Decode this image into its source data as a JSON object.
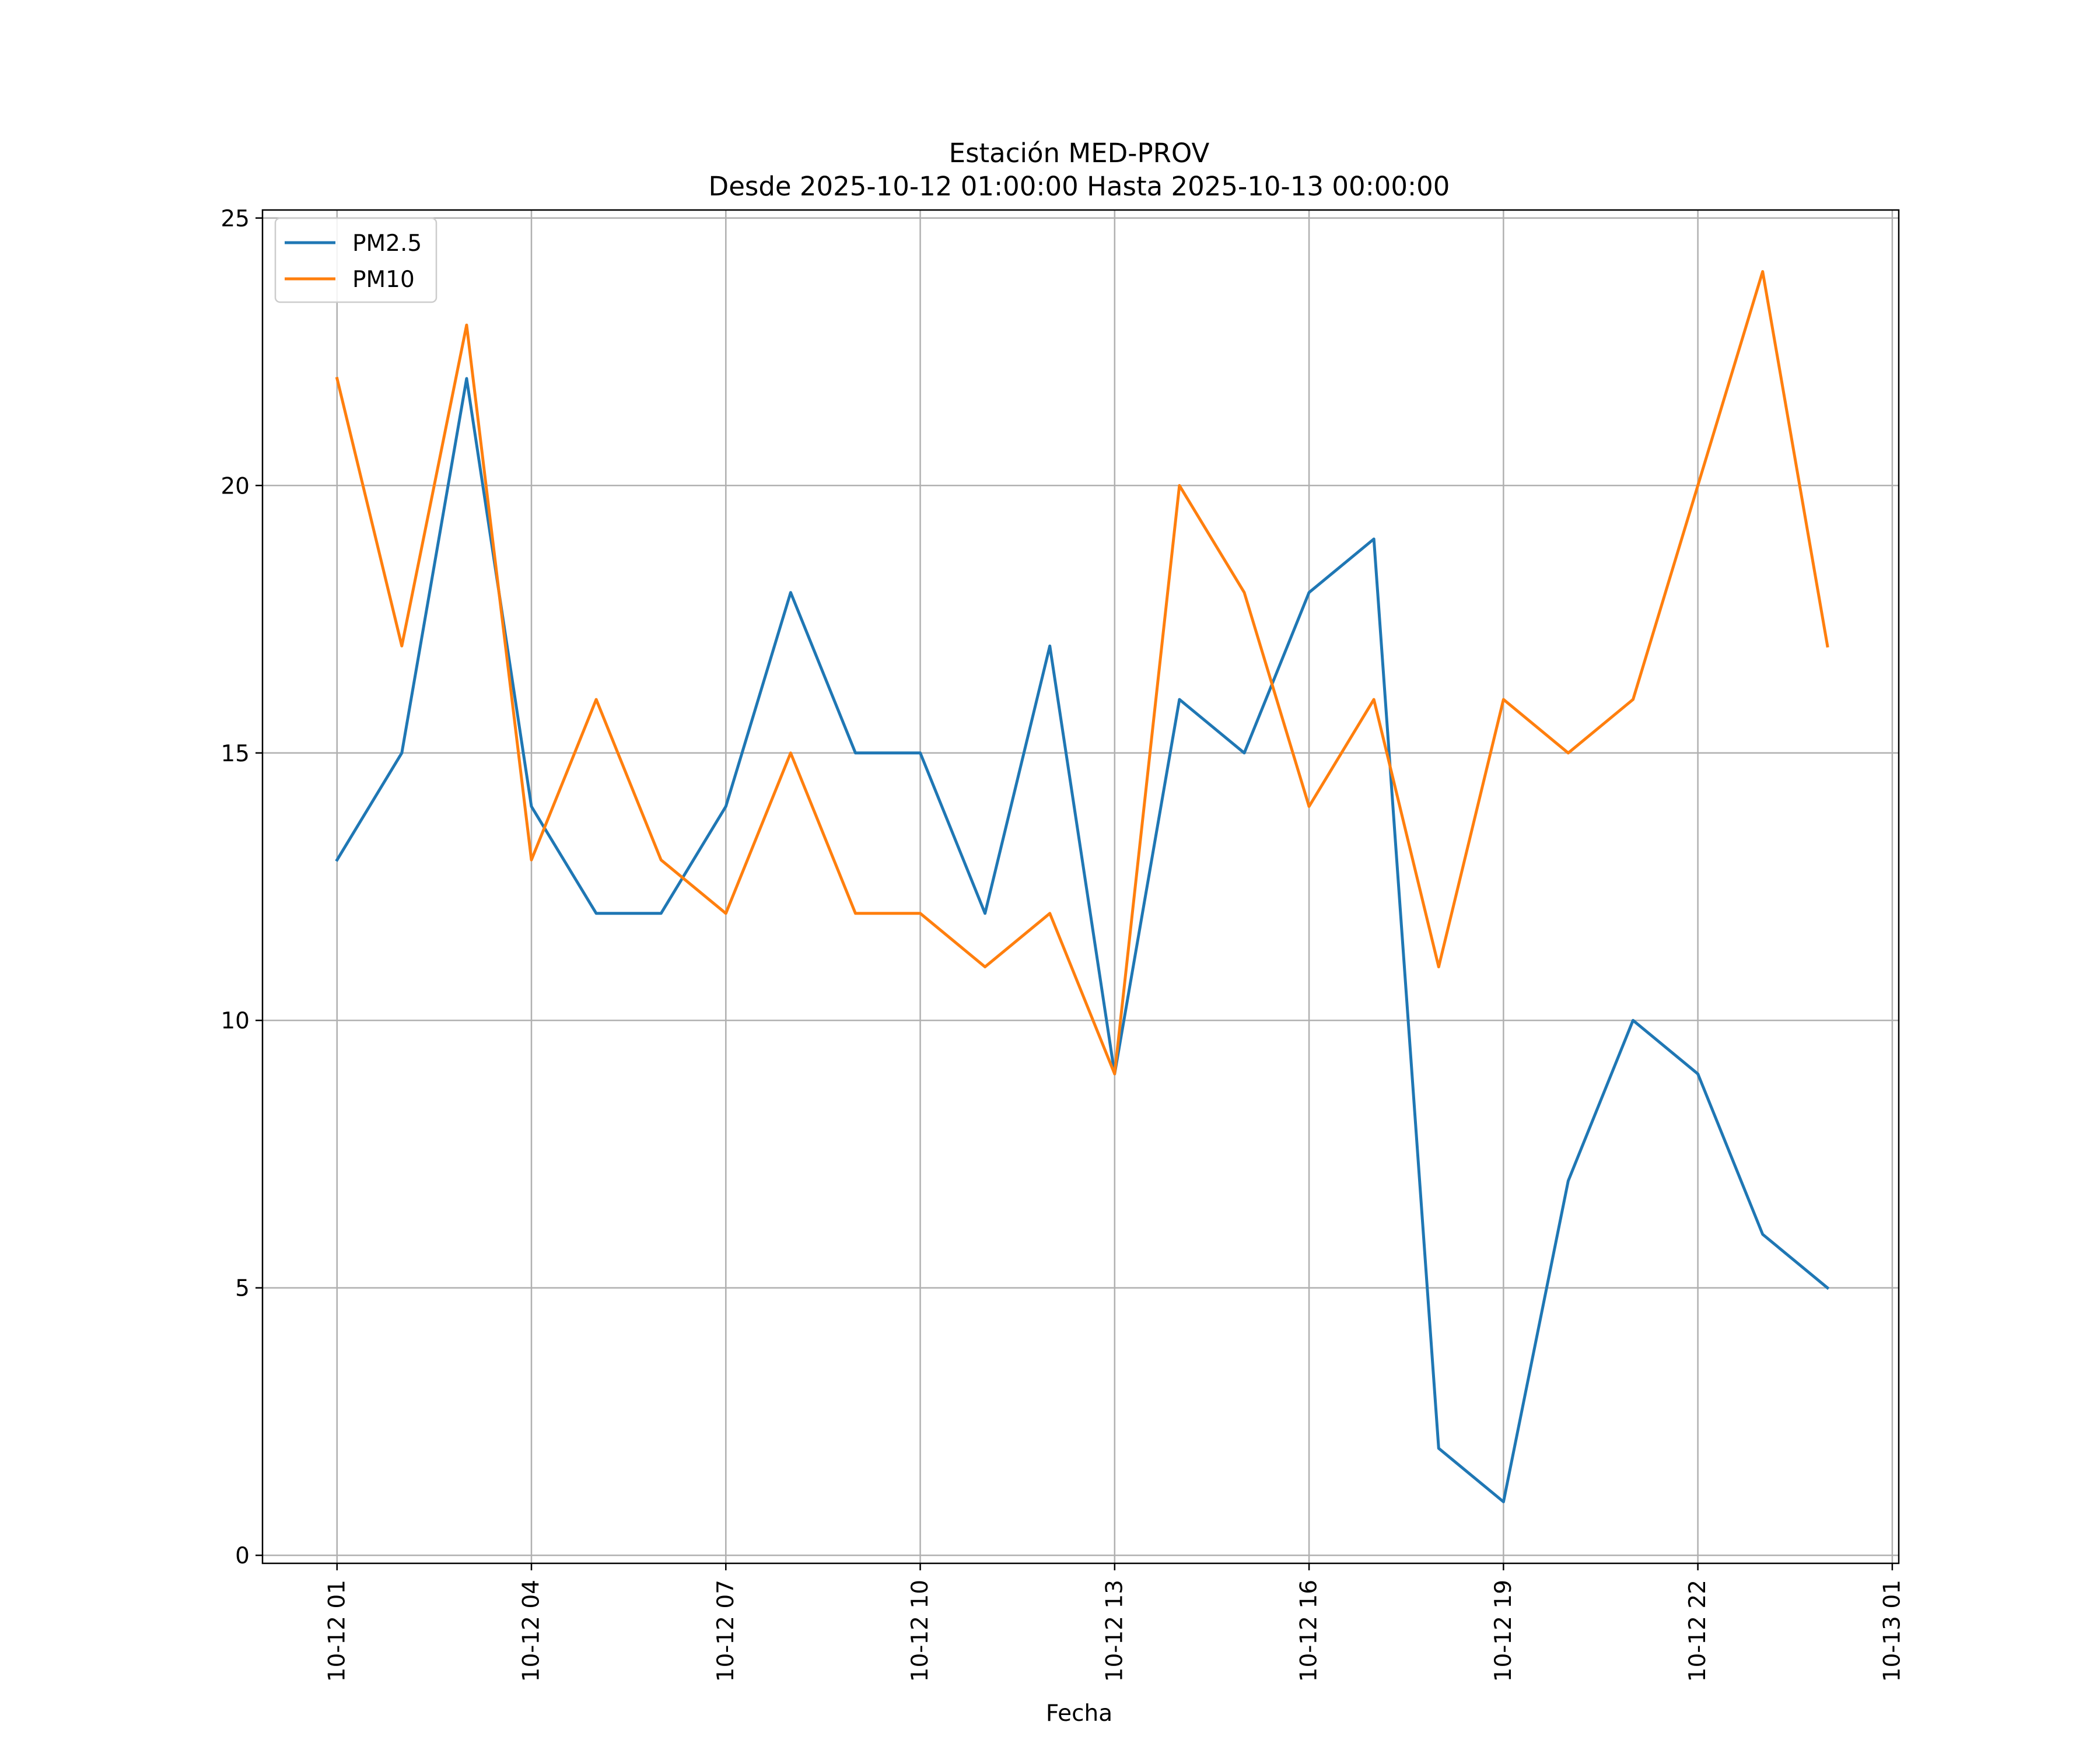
{
  "chart_data": {
    "type": "line",
    "title_line1": "Estación MED-PROV",
    "title_line2": "Desde 2025-10-12 01:00:00 Hasta 2025-10-13 00:00:00",
    "xlabel": "Fecha",
    "ylabel": "",
    "x": [
      "2025-10-12 01:00",
      "2025-10-12 02:00",
      "2025-10-12 03:00",
      "2025-10-12 04:00",
      "2025-10-12 05:00",
      "2025-10-12 06:00",
      "2025-10-12 07:00",
      "2025-10-12 08:00",
      "2025-10-12 09:00",
      "2025-10-12 10:00",
      "2025-10-12 11:00",
      "2025-10-12 12:00",
      "2025-10-12 13:00",
      "2025-10-12 14:00",
      "2025-10-12 15:00",
      "2025-10-12 16:00",
      "2025-10-12 17:00",
      "2025-10-12 18:00",
      "2025-10-12 19:00",
      "2025-10-12 20:00",
      "2025-10-12 21:00",
      "2025-10-12 22:00",
      "2025-10-12 23:00",
      "2025-10-13 00:00"
    ],
    "series": [
      {
        "name": "PM2.5",
        "color": "#1f77b4",
        "values": [
          13,
          15,
          22,
          14,
          12,
          12,
          14,
          18,
          15,
          15,
          12,
          17,
          9,
          16,
          15,
          18,
          19,
          2,
          1,
          7,
          10,
          9,
          6,
          5
        ]
      },
      {
        "name": "PM10",
        "color": "#ff7f0e",
        "values": [
          22,
          17,
          23,
          13,
          16,
          13,
          12,
          15,
          12,
          12,
          11,
          12,
          9,
          20,
          18,
          14,
          16,
          11,
          16,
          15,
          16,
          20,
          24,
          17
        ]
      }
    ],
    "xticks": [
      {
        "hour": 0,
        "label": "10-12 01"
      },
      {
        "hour": 3,
        "label": "10-12 04"
      },
      {
        "hour": 6,
        "label": "10-12 07"
      },
      {
        "hour": 9,
        "label": "10-12 10"
      },
      {
        "hour": 12,
        "label": "10-12 13"
      },
      {
        "hour": 15,
        "label": "10-12 16"
      },
      {
        "hour": 18,
        "label": "10-12 19"
      },
      {
        "hour": 21,
        "label": "10-12 22"
      },
      {
        "hour": 24,
        "label": "10-13 01"
      }
    ],
    "yticks": [
      {
        "value": 0,
        "label": "0"
      },
      {
        "value": 5,
        "label": "5"
      },
      {
        "value": 10,
        "label": "10"
      },
      {
        "value": 15,
        "label": "15"
      },
      {
        "value": 20,
        "label": "20"
      },
      {
        "value": 25,
        "label": "25"
      }
    ],
    "xlim_hours": [
      -1.15,
      24.1
    ],
    "ylim": [
      -0.15,
      25.15
    ],
    "grid": true,
    "legend_position": "top-left"
  }
}
